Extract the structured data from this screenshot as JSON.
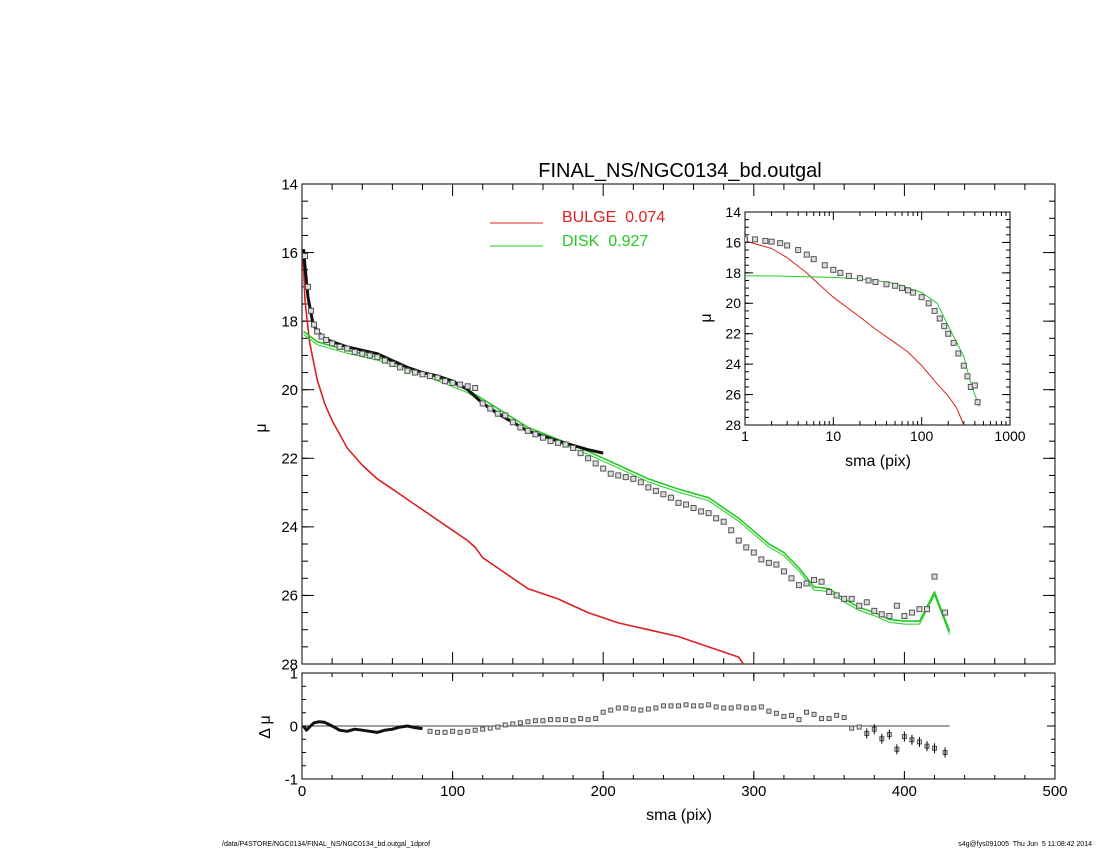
{
  "footer": {
    "left": "/data/P4STORE/NGC0134/FINAL_NS/NGC0134_bd.outgal_1dprof",
    "right": "s4g@fys091005  Thu Jun  5 11:08:42 2014"
  },
  "chart_data": [
    {
      "id": "main",
      "type": "line",
      "title": "FINAL_NS/NGC0134_bd.outgal",
      "xlabel": "",
      "ylabel": "μ",
      "xlim": [
        0,
        500
      ],
      "ylim": [
        28,
        14
      ],
      "yticks": [
        "14",
        "16",
        "18",
        "20",
        "22",
        "24",
        "26",
        "28"
      ],
      "legend": {
        "position": "top-center",
        "entries": [
          {
            "label": "BULGE  0.074",
            "color": "#dd2020"
          },
          {
            "label": "DISK  0.927",
            "color": "#22cc22"
          }
        ]
      },
      "series": [
        {
          "name": "BULGE",
          "color": "#dd2020",
          "kind": "line",
          "x": [
            0.5,
            2,
            5,
            10,
            15,
            20,
            25,
            30,
            40,
            50,
            60,
            70,
            80,
            90,
            100,
            110,
            115,
            120,
            130,
            140,
            150,
            170,
            190,
            210,
            230,
            250,
            270,
            290,
            293
          ],
          "y": [
            15.9,
            17.4,
            18.6,
            19.7,
            20.4,
            20.9,
            21.3,
            21.7,
            22.2,
            22.6,
            22.9,
            23.2,
            23.5,
            23.8,
            24.1,
            24.4,
            24.6,
            24.9,
            25.2,
            25.5,
            25.8,
            26.1,
            26.5,
            26.8,
            27.0,
            27.2,
            27.5,
            27.8,
            28.0
          ]
        },
        {
          "name": "DISK",
          "color": "#22cc22",
          "kind": "line",
          "x": [
            1,
            10,
            30,
            50,
            70,
            90,
            110,
            130,
            150,
            170,
            190,
            210,
            230,
            250,
            270,
            290,
            310,
            320,
            330,
            340,
            350,
            360,
            370,
            380,
            390,
            400,
            410,
            420,
            430
          ],
          "y": [
            18.3,
            18.6,
            18.85,
            19.05,
            19.35,
            19.65,
            20.0,
            20.55,
            21.1,
            21.45,
            21.8,
            22.2,
            22.6,
            22.9,
            23.15,
            23.75,
            24.5,
            24.75,
            25.2,
            25.75,
            25.8,
            26.1,
            26.35,
            26.5,
            26.7,
            26.75,
            26.75,
            25.9,
            27.05
          ]
        },
        {
          "name": "",
          "color": "#111111",
          "kind": "line",
          "x": [
            1,
            2,
            4,
            7,
            10,
            15,
            20,
            30,
            40,
            50,
            60,
            70,
            80,
            90,
            100,
            110,
            120,
            130,
            140,
            150,
            170,
            190,
            200
          ],
          "y": [
            15.9,
            16.4,
            17.3,
            18.0,
            18.3,
            18.5,
            18.6,
            18.75,
            18.85,
            18.95,
            19.15,
            19.35,
            19.5,
            19.6,
            19.75,
            20.0,
            20.4,
            20.7,
            20.95,
            21.2,
            21.5,
            21.75,
            21.85
          ]
        },
        {
          "name": "",
          "color": "#555555",
          "kind": "markers",
          "x": [
            2,
            4,
            6,
            8,
            10,
            13,
            16,
            20,
            25,
            30,
            35,
            40,
            45,
            50,
            55,
            60,
            65,
            70,
            75,
            80,
            85,
            90,
            95,
            100,
            105,
            110,
            115,
            120,
            125,
            130,
            135,
            140,
            145,
            150,
            155,
            160,
            165,
            170,
            175,
            180,
            185,
            190,
            195,
            200,
            205,
            210,
            215,
            220,
            225,
            230,
            235,
            240,
            245,
            250,
            255,
            260,
            265,
            270,
            275,
            280,
            285,
            290,
            295,
            300,
            305,
            310,
            315,
            320,
            325,
            330,
            335,
            340,
            345,
            350,
            355,
            360,
            365,
            370,
            375,
            380,
            385,
            390,
            395,
            400,
            405,
            410,
            415,
            420,
            427
          ],
          "y": [
            16.1,
            17.0,
            17.7,
            18.1,
            18.3,
            18.45,
            18.55,
            18.65,
            18.75,
            18.8,
            18.9,
            18.95,
            19.0,
            19.05,
            19.15,
            19.25,
            19.35,
            19.45,
            19.5,
            19.55,
            19.6,
            19.65,
            19.75,
            19.8,
            19.85,
            19.9,
            19.95,
            20.4,
            20.55,
            20.7,
            20.75,
            20.95,
            21.1,
            21.2,
            21.3,
            21.4,
            21.5,
            21.55,
            21.6,
            21.7,
            21.85,
            22.0,
            22.15,
            22.3,
            22.45,
            22.5,
            22.55,
            22.6,
            22.7,
            22.85,
            22.95,
            23.05,
            23.15,
            23.3,
            23.35,
            23.45,
            23.55,
            23.6,
            23.75,
            23.85,
            24.1,
            24.4,
            24.6,
            24.75,
            24.95,
            25.05,
            25.1,
            25.3,
            25.5,
            25.7,
            25.65,
            25.55,
            25.6,
            25.9,
            26.0,
            26.1,
            26.1,
            26.3,
            26.2,
            26.45,
            26.55,
            26.6,
            26.3,
            26.6,
            26.5,
            26.4,
            26.4,
            25.45,
            26.5
          ]
        }
      ]
    },
    {
      "id": "residual",
      "type": "scatter",
      "xlabel": "sma (pix)",
      "ylabel": "Δ μ",
      "xlim": [
        0,
        500
      ],
      "ylim": [
        -1,
        1
      ],
      "xticks": [
        "0",
        "100",
        "200",
        "300",
        "400",
        "500"
      ],
      "yticks": [
        "-1",
        "0",
        "1"
      ],
      "zero_line": {
        "x": [
          0,
          430
        ],
        "y": 0
      },
      "series": [
        {
          "name": "",
          "color": "#111111",
          "kind": "line",
          "x": [
            1,
            3,
            5,
            8,
            11,
            15,
            20,
            25,
            30,
            35,
            40,
            45,
            50,
            55,
            60,
            65,
            70,
            75,
            80
          ],
          "y": [
            0.0,
            -0.08,
            -0.02,
            0.06,
            0.08,
            0.07,
            0.0,
            -0.08,
            -0.1,
            -0.06,
            -0.08,
            -0.1,
            -0.12,
            -0.08,
            -0.06,
            -0.02,
            0.0,
            -0.03,
            -0.05
          ]
        },
        {
          "name": "",
          "color": "#555555",
          "kind": "markers",
          "x": [
            85,
            90,
            95,
            100,
            105,
            110,
            115,
            120,
            125,
            130,
            135,
            140,
            145,
            150,
            155,
            160,
            165,
            170,
            175,
            180,
            185,
            190,
            195,
            200,
            205,
            210,
            215,
            220,
            225,
            230,
            235,
            240,
            245,
            250,
            255,
            260,
            265,
            270,
            275,
            280,
            285,
            290,
            295,
            300,
            305,
            310,
            315,
            320,
            325,
            330,
            335,
            340,
            345,
            350,
            355,
            360,
            365,
            370,
            375,
            380,
            385,
            390,
            395,
            400,
            405,
            410,
            415,
            420,
            427
          ],
          "y": [
            -0.1,
            -0.12,
            -0.12,
            -0.1,
            -0.12,
            -0.1,
            -0.08,
            -0.06,
            -0.04,
            -0.02,
            0.02,
            0.04,
            0.06,
            0.08,
            0.1,
            0.1,
            0.12,
            0.12,
            0.12,
            0.1,
            0.14,
            0.12,
            0.14,
            0.26,
            0.3,
            0.34,
            0.34,
            0.32,
            0.3,
            0.32,
            0.34,
            0.38,
            0.38,
            0.38,
            0.4,
            0.38,
            0.38,
            0.4,
            0.36,
            0.34,
            0.34,
            0.36,
            0.34,
            0.34,
            0.36,
            0.28,
            0.24,
            0.18,
            0.2,
            0.12,
            0.26,
            0.22,
            0.14,
            0.14,
            0.2,
            0.16,
            -0.04,
            -0.02,
            -0.14,
            -0.06,
            -0.24,
            -0.16,
            -0.44,
            -0.2,
            -0.26,
            -0.3,
            -0.38,
            -0.42,
            -0.5
          ]
        }
      ]
    },
    {
      "id": "inset",
      "type": "line",
      "xlabel": "sma (pix)",
      "ylabel": "μ",
      "xscale": "log",
      "xlim": [
        1,
        1000
      ],
      "ylim": [
        28,
        14
      ],
      "xticks": [
        "1",
        "10",
        "100",
        "1000"
      ],
      "yticks": [
        "14",
        "16",
        "18",
        "20",
        "22",
        "24",
        "26",
        "28"
      ],
      "series": [
        {
          "name": "",
          "color": "#dd2020",
          "kind": "line",
          "x": [
            1,
            2,
            3,
            5,
            7,
            10,
            20,
            30,
            50,
            70,
            100,
            150,
            200,
            250,
            300
          ],
          "y": [
            15.9,
            16.4,
            17.0,
            18.0,
            18.8,
            19.6,
            20.9,
            21.7,
            22.6,
            23.2,
            24.1,
            25.3,
            26.1,
            26.9,
            28.0
          ]
        },
        {
          "name": "",
          "color": "#22cc22",
          "kind": "line",
          "x": [
            1,
            2,
            5,
            10,
            20,
            30,
            50,
            100,
            150,
            200,
            300,
            350,
            400,
            450
          ],
          "y": [
            18.2,
            18.2,
            18.25,
            18.3,
            18.4,
            18.5,
            18.7,
            19.3,
            20.0,
            21.5,
            23.5,
            25.0,
            26.0,
            26.8
          ]
        },
        {
          "name": "",
          "color": "#555555",
          "kind": "markers",
          "x": [
            1,
            1.3,
            1.7,
            2,
            2.5,
            3,
            4,
            5,
            6,
            8,
            10,
            12,
            15,
            20,
            25,
            30,
            40,
            50,
            60,
            70,
            80,
            100,
            120,
            140,
            160,
            180,
            200,
            230,
            260,
            300,
            330,
            360,
            400,
            430
          ],
          "y": [
            15.8,
            15.8,
            15.9,
            15.95,
            16.05,
            16.2,
            16.5,
            16.8,
            17.1,
            17.5,
            17.8,
            18.0,
            18.2,
            18.35,
            18.5,
            18.6,
            18.75,
            18.85,
            19.0,
            19.15,
            19.3,
            19.6,
            20.0,
            20.5,
            21.0,
            21.5,
            22.0,
            22.6,
            23.3,
            24.1,
            24.8,
            25.5,
            25.4,
            26.5
          ]
        }
      ]
    }
  ]
}
